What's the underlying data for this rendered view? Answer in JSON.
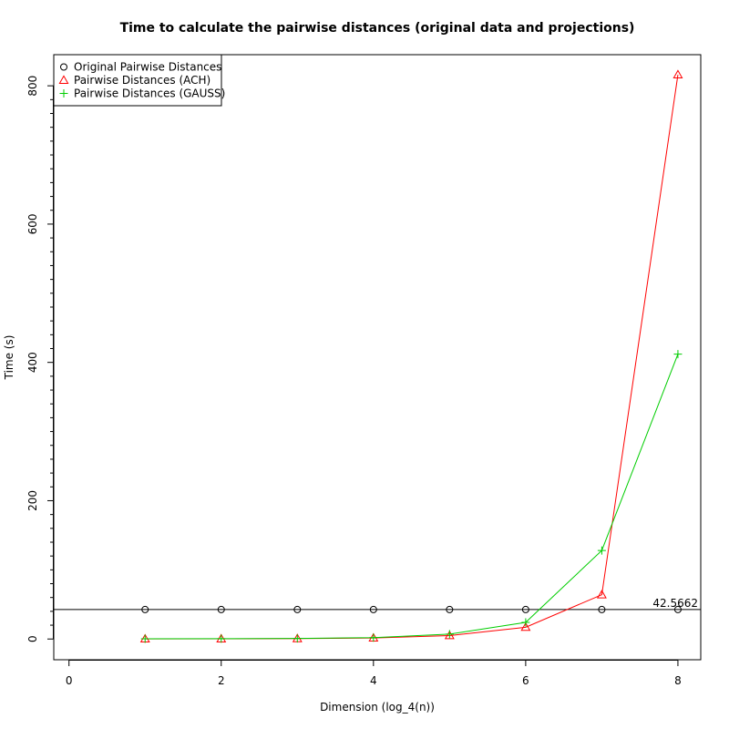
{
  "chart_data": {
    "type": "line",
    "title": "Time to calculate the pairwise distances (original data and projections)",
    "xlabel": "Dimension (log_4(n))",
    "ylabel": "Time (s)",
    "xlim": [
      -0.2,
      8.3
    ],
    "ylim": [
      -30,
      845
    ],
    "xticks": [
      0,
      2,
      4,
      6,
      8
    ],
    "xtick_labels": [
      "0",
      "2",
      "4",
      "6",
      "8"
    ],
    "yticks": [
      0,
      200,
      400,
      600,
      800
    ],
    "ytick_labels": [
      "0",
      "200",
      "400",
      "600",
      "800"
    ],
    "yminor_step": 20,
    "x": [
      1,
      2,
      3,
      4,
      5,
      6,
      7,
      8
    ],
    "series": [
      {
        "name": "Original Pairwise Distances",
        "marker": "circle",
        "color": "#000000",
        "connected": false,
        "values": [
          42.5662,
          42.5662,
          42.5662,
          42.5662,
          42.5662,
          42.5662,
          42.5662,
          42.5662
        ]
      },
      {
        "name": "Pairwise Distances (ACH)",
        "marker": "triangle",
        "color": "#ff0000",
        "connected": true,
        "values": [
          0.2,
          0.3,
          0.6,
          1.5,
          5,
          17,
          64,
          816
        ]
      },
      {
        "name": "Pairwise Distances (GAUSS)",
        "marker": "plus",
        "color": "#00cd00",
        "connected": true,
        "values": [
          0.3,
          0.4,
          0.8,
          2,
          7,
          24,
          128,
          412
        ]
      }
    ],
    "hline": {
      "value": 42.5662,
      "label": "42.5662",
      "color": "#000000"
    },
    "legend_position": "top-left",
    "grid": false
  }
}
